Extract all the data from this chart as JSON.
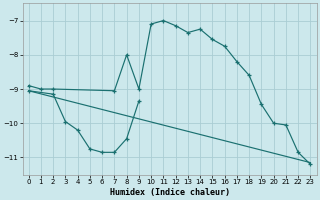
{
  "xlabel": "Humidex (Indice chaleur)",
  "background_color": "#cce8ec",
  "grid_color": "#aacdd4",
  "line_color": "#1a7070",
  "xlim": [
    -0.5,
    23.5
  ],
  "ylim": [
    -11.5,
    -6.5
  ],
  "yticks": [
    -11,
    -10,
    -9,
    -8,
    -7
  ],
  "xticks": [
    0,
    1,
    2,
    3,
    4,
    5,
    6,
    7,
    8,
    9,
    10,
    11,
    12,
    13,
    14,
    15,
    16,
    17,
    18,
    19,
    20,
    21,
    22,
    23
  ],
  "line1_x": [
    0,
    1,
    2,
    7,
    8,
    9,
    10,
    11,
    12,
    13,
    14,
    15,
    16,
    17,
    18,
    19,
    20,
    21,
    22,
    23
  ],
  "line1_y": [
    -8.9,
    -9.0,
    -9.0,
    -9.05,
    -8.0,
    -9.0,
    -7.1,
    -7.0,
    -7.15,
    -7.35,
    -7.25,
    -7.55,
    -7.75,
    -8.2,
    -8.6,
    -9.45,
    -10.0,
    -10.05,
    -10.85,
    -11.2
  ],
  "line2_x": [
    0,
    23
  ],
  "line2_y": [
    -9.05,
    -11.15
  ],
  "line3_x": [
    0,
    2,
    3,
    4,
    5,
    6,
    7,
    8,
    9
  ],
  "line3_y": [
    -9.05,
    -9.15,
    -9.95,
    -10.2,
    -10.75,
    -10.85,
    -10.85,
    -10.45,
    -9.35
  ]
}
